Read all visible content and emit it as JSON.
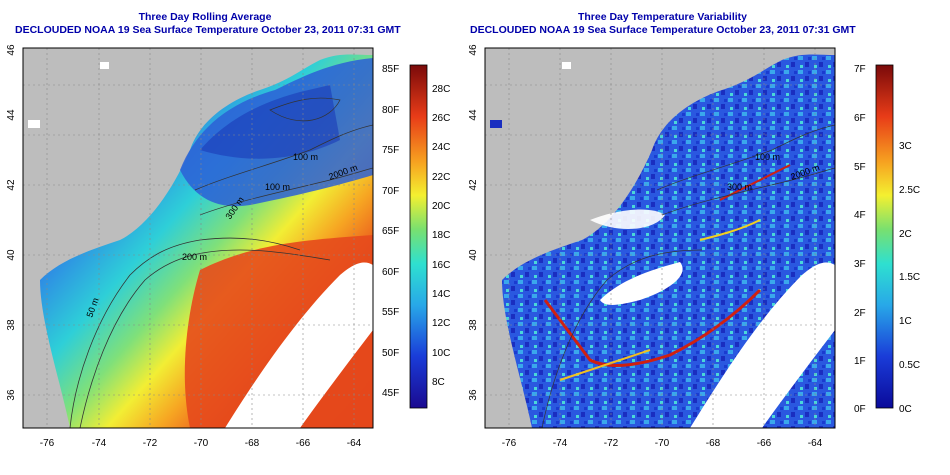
{
  "left_panel": {
    "title": "Three Day Rolling Average",
    "subtitle": "DECLOUDED NOAA 19 Sea Surface Temperature October 23, 2011 07:31 GMT",
    "x_ticks": [
      "-76",
      "-74",
      "-72",
      "-70",
      "-68",
      "-66",
      "-64"
    ],
    "y_ticks": [
      "36",
      "38",
      "40",
      "42",
      "44",
      "46"
    ],
    "contours": [
      "50 m",
      "200 m",
      "100 m",
      "300 m",
      "100 m",
      "2000 m"
    ],
    "colorbar_f": [
      "85F",
      "80F",
      "75F",
      "70F",
      "65F",
      "60F",
      "55F",
      "50F",
      "45F"
    ],
    "colorbar_c": [
      "28C",
      "26C",
      "24C",
      "22C",
      "20C",
      "18C",
      "16C",
      "14C",
      "12C",
      "10C",
      "8C"
    ]
  },
  "right_panel": {
    "title": "Three Day Temperature Variability",
    "subtitle": "DECLOUDED NOAA 19 Sea Surface Temperature October 23, 2011 07:31 GMT",
    "x_ticks": [
      "-76",
      "-74",
      "-72",
      "-70",
      "-68",
      "-66",
      "-64"
    ],
    "y_ticks": [
      "36",
      "38",
      "40",
      "42",
      "44",
      "46"
    ],
    "contours": [
      "100 m",
      "300 m",
      "2000 m"
    ],
    "colorbar_f": [
      "7F",
      "6F",
      "5F",
      "4F",
      "3F",
      "2F",
      "1F",
      "0F"
    ],
    "colorbar_c": [
      "3C",
      "2.5C",
      "2C",
      "1.5C",
      "1C",
      "0.5C",
      "0C"
    ]
  },
  "colors": {
    "title": "#0000aa",
    "land": "#bdbdbd",
    "cloud": "#ffffff",
    "sst_warm": "#e8401c",
    "sst_cold": "#2a5fd8",
    "var_low": "#1a3cc8",
    "var_high": "#c81010"
  }
}
